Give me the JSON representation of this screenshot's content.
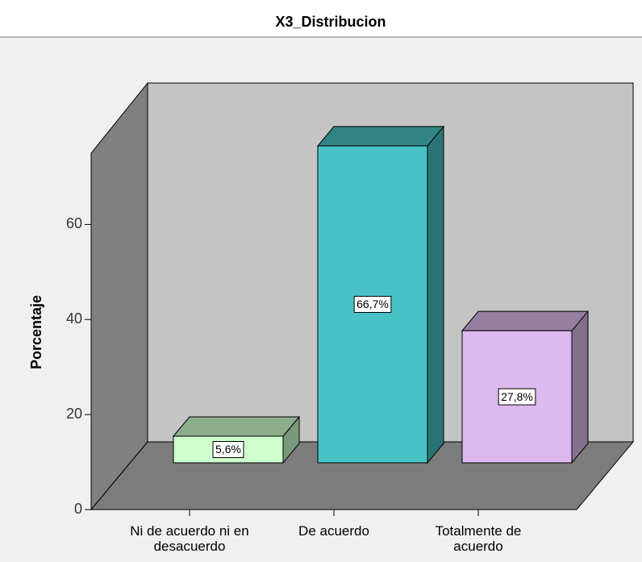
{
  "chart_data": {
    "type": "bar3d",
    "title": "X3_Distribucion",
    "y_label": "Porcentaje",
    "categories": [
      "Ni de acuerdo ni en desacuerdo",
      "De acuerdo",
      "Totalmente de acuerdo"
    ],
    "values": [
      5.6,
      66.7,
      27.8
    ],
    "value_labels": [
      "5,6%",
      "66,7%",
      "27,8%"
    ],
    "colors": [
      "#ccffcc",
      "#48c2c5",
      "#ddb9ee"
    ],
    "ylim": [
      0,
      75
    ],
    "yticks": [
      0,
      20,
      40,
      60
    ]
  }
}
